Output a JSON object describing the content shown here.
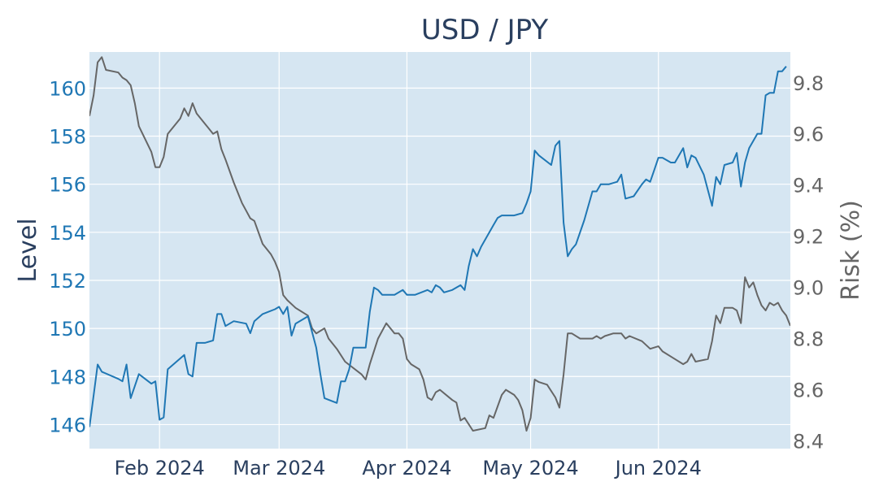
{
  "chart_data": {
    "type": "line",
    "title": "USD / JPY",
    "ylabel": "Level",
    "y2label": "Risk (%)",
    "x_range": [
      "2024-01-15",
      "2024-06-28"
    ],
    "ylim": [
      145.0,
      161.5
    ],
    "y2lim": [
      8.37,
      9.92
    ],
    "x_ticks": [
      {
        "date": "2024-02-01",
        "label": "Feb 2024"
      },
      {
        "date": "2024-03-01",
        "label": "Mar 2024"
      },
      {
        "date": "2024-04-01",
        "label": "Apr 2024"
      },
      {
        "date": "2024-05-01",
        "label": "May 2024"
      },
      {
        "date": "2024-06-01",
        "label": "Jun 2024"
      }
    ],
    "y_ticks": [
      "146",
      "148",
      "150",
      "152",
      "154",
      "156",
      "158",
      "160"
    ],
    "y2_ticks": [
      "8.4",
      "8.6",
      "8.8",
      "9.0",
      "9.2",
      "9.4",
      "9.6",
      "9.8"
    ],
    "grid": true,
    "background_color": "#d6e6f2",
    "series": [
      {
        "axis": "left",
        "color": "#1f77b4",
        "points": [
          [
            "2024-01-15",
            145.9
          ],
          [
            "2024-01-16",
            147.2
          ],
          [
            "2024-01-17",
            148.5
          ],
          [
            "2024-01-18",
            148.2
          ],
          [
            "2024-01-22",
            147.9
          ],
          [
            "2024-01-23",
            147.8
          ],
          [
            "2024-01-24",
            148.5
          ],
          [
            "2024-01-25",
            147.1
          ],
          [
            "2024-01-26",
            147.6
          ],
          [
            "2024-01-27",
            148.1
          ],
          [
            "2024-01-30",
            147.7
          ],
          [
            "2024-01-31",
            147.8
          ],
          [
            "2024-02-01",
            146.2
          ],
          [
            "2024-02-02",
            146.3
          ],
          [
            "2024-02-03",
            148.3
          ],
          [
            "2024-02-05",
            148.6
          ],
          [
            "2024-02-07",
            148.9
          ],
          [
            "2024-02-08",
            148.1
          ],
          [
            "2024-02-09",
            148.0
          ],
          [
            "2024-02-10",
            149.4
          ],
          [
            "2024-02-12",
            149.4
          ],
          [
            "2024-02-14",
            149.5
          ],
          [
            "2024-02-15",
            150.6
          ],
          [
            "2024-02-16",
            150.6
          ],
          [
            "2024-02-17",
            150.1
          ],
          [
            "2024-02-19",
            150.3
          ],
          [
            "2024-02-22",
            150.2
          ],
          [
            "2024-02-23",
            149.8
          ],
          [
            "2024-02-24",
            150.3
          ],
          [
            "2024-02-26",
            150.6
          ],
          [
            "2024-02-29",
            150.8
          ],
          [
            "2024-03-01",
            150.9
          ],
          [
            "2024-03-02",
            150.6
          ],
          [
            "2024-03-03",
            150.9
          ],
          [
            "2024-03-04",
            149.7
          ],
          [
            "2024-03-05",
            150.2
          ],
          [
            "2024-03-08",
            150.5
          ],
          [
            "2024-03-10",
            149.2
          ],
          [
            "2024-03-11",
            148.1
          ],
          [
            "2024-03-12",
            147.1
          ],
          [
            "2024-03-15",
            146.9
          ],
          [
            "2024-03-16",
            147.8
          ],
          [
            "2024-03-17",
            147.8
          ],
          [
            "2024-03-18",
            148.3
          ],
          [
            "2024-03-19",
            149.2
          ],
          [
            "2024-03-22",
            149.2
          ],
          [
            "2024-03-23",
            150.7
          ],
          [
            "2024-03-24",
            151.7
          ],
          [
            "2024-03-25",
            151.6
          ],
          [
            "2024-03-26",
            151.4
          ],
          [
            "2024-03-28",
            151.4
          ],
          [
            "2024-03-29",
            151.4
          ],
          [
            "2024-03-31",
            151.6
          ],
          [
            "2024-04-01",
            151.4
          ],
          [
            "2024-04-03",
            151.4
          ],
          [
            "2024-04-06",
            151.6
          ],
          [
            "2024-04-07",
            151.5
          ],
          [
            "2024-04-08",
            151.8
          ],
          [
            "2024-04-09",
            151.7
          ],
          [
            "2024-04-10",
            151.5
          ],
          [
            "2024-04-12",
            151.6
          ],
          [
            "2024-04-14",
            151.8
          ],
          [
            "2024-04-15",
            151.6
          ],
          [
            "2024-04-16",
            152.6
          ],
          [
            "2024-04-17",
            153.3
          ],
          [
            "2024-04-18",
            153.0
          ],
          [
            "2024-04-19",
            153.4
          ],
          [
            "2024-04-22",
            154.3
          ],
          [
            "2024-04-23",
            154.6
          ],
          [
            "2024-04-24",
            154.7
          ],
          [
            "2024-04-26",
            154.7
          ],
          [
            "2024-04-27",
            154.7
          ],
          [
            "2024-04-29",
            154.8
          ],
          [
            "2024-04-30",
            155.2
          ],
          [
            "2024-05-01",
            155.7
          ],
          [
            "2024-05-02",
            157.4
          ],
          [
            "2024-05-03",
            157.2
          ],
          [
            "2024-05-06",
            156.8
          ],
          [
            "2024-05-07",
            157.6
          ],
          [
            "2024-05-08",
            157.8
          ],
          [
            "2024-05-09",
            154.4
          ],
          [
            "2024-05-10",
            153.0
          ],
          [
            "2024-05-11",
            153.3
          ],
          [
            "2024-05-12",
            153.5
          ],
          [
            "2024-05-14",
            154.5
          ],
          [
            "2024-05-16",
            155.7
          ],
          [
            "2024-05-17",
            155.7
          ],
          [
            "2024-05-18",
            156.0
          ],
          [
            "2024-05-20",
            156.0
          ],
          [
            "2024-05-22",
            156.1
          ],
          [
            "2024-05-23",
            156.4
          ],
          [
            "2024-05-24",
            155.4
          ],
          [
            "2024-05-26",
            155.5
          ],
          [
            "2024-05-28",
            156.0
          ],
          [
            "2024-05-29",
            156.2
          ],
          [
            "2024-05-30",
            156.1
          ],
          [
            "2024-05-31",
            156.6
          ],
          [
            "2024-06-01",
            157.1
          ],
          [
            "2024-06-02",
            157.1
          ],
          [
            "2024-06-04",
            156.9
          ],
          [
            "2024-06-05",
            156.9
          ],
          [
            "2024-06-07",
            157.5
          ],
          [
            "2024-06-08",
            156.7
          ],
          [
            "2024-06-09",
            157.2
          ],
          [
            "2024-06-10",
            157.1
          ],
          [
            "2024-06-12",
            156.4
          ],
          [
            "2024-06-14",
            155.1
          ],
          [
            "2024-06-15",
            156.3
          ],
          [
            "2024-06-16",
            156.0
          ],
          [
            "2024-06-17",
            156.8
          ],
          [
            "2024-06-19",
            156.9
          ],
          [
            "2024-06-20",
            157.3
          ],
          [
            "2024-06-21",
            155.9
          ],
          [
            "2024-06-22",
            156.9
          ],
          [
            "2024-06-23",
            157.5
          ],
          [
            "2024-06-24",
            157.8
          ],
          [
            "2024-06-25",
            158.1
          ],
          [
            "2024-06-26",
            158.1
          ],
          [
            "2024-06-27",
            159.7
          ],
          [
            "2024-06-28",
            159.8
          ],
          [
            "2024-06-29",
            159.8
          ],
          [
            "2024-06-30",
            160.7
          ],
          [
            "2024-07-01",
            160.7
          ],
          [
            "2024-07-02",
            160.9
          ]
        ]
      },
      {
        "axis": "right",
        "color": "#666666",
        "points": [
          [
            "2024-01-15",
            9.67
          ],
          [
            "2024-01-16",
            9.75
          ],
          [
            "2024-01-17",
            9.88
          ],
          [
            "2024-01-18",
            9.9
          ],
          [
            "2024-01-19",
            9.85
          ],
          [
            "2024-01-22",
            9.84
          ],
          [
            "2024-01-23",
            9.82
          ],
          [
            "2024-01-24",
            9.81
          ],
          [
            "2024-01-25",
            9.79
          ],
          [
            "2024-01-26",
            9.72
          ],
          [
            "2024-01-27",
            9.63
          ],
          [
            "2024-01-30",
            9.53
          ],
          [
            "2024-01-31",
            9.47
          ],
          [
            "2024-02-01",
            9.47
          ],
          [
            "2024-02-02",
            9.51
          ],
          [
            "2024-02-03",
            9.6
          ],
          [
            "2024-02-06",
            9.66
          ],
          [
            "2024-02-07",
            9.7
          ],
          [
            "2024-02-08",
            9.67
          ],
          [
            "2024-02-09",
            9.72
          ],
          [
            "2024-02-10",
            9.68
          ],
          [
            "2024-02-12",
            9.64
          ],
          [
            "2024-02-14",
            9.6
          ],
          [
            "2024-02-15",
            9.61
          ],
          [
            "2024-02-16",
            9.54
          ],
          [
            "2024-02-17",
            9.5
          ],
          [
            "2024-02-19",
            9.41
          ],
          [
            "2024-02-21",
            9.33
          ],
          [
            "2024-02-22",
            9.3
          ],
          [
            "2024-02-23",
            9.27
          ],
          [
            "2024-02-24",
            9.26
          ],
          [
            "2024-02-26",
            9.17
          ],
          [
            "2024-02-28",
            9.13
          ],
          [
            "2024-02-29",
            9.1
          ],
          [
            "2024-03-01",
            9.06
          ],
          [
            "2024-03-02",
            8.97
          ],
          [
            "2024-03-03",
            8.95
          ],
          [
            "2024-03-05",
            8.92
          ],
          [
            "2024-03-08",
            8.89
          ],
          [
            "2024-03-09",
            8.84
          ],
          [
            "2024-03-10",
            8.82
          ],
          [
            "2024-03-12",
            8.84
          ],
          [
            "2024-03-13",
            8.8
          ],
          [
            "2024-03-15",
            8.76
          ],
          [
            "2024-03-17",
            8.71
          ],
          [
            "2024-03-21",
            8.66
          ],
          [
            "2024-03-22",
            8.64
          ],
          [
            "2024-03-23",
            8.7
          ],
          [
            "2024-03-25",
            8.8
          ],
          [
            "2024-03-27",
            8.86
          ],
          [
            "2024-03-29",
            8.82
          ],
          [
            "2024-03-30",
            8.82
          ],
          [
            "2024-03-31",
            8.8
          ],
          [
            "2024-04-01",
            8.72
          ],
          [
            "2024-04-02",
            8.7
          ],
          [
            "2024-04-04",
            8.68
          ],
          [
            "2024-04-05",
            8.64
          ],
          [
            "2024-04-06",
            8.57
          ],
          [
            "2024-04-07",
            8.56
          ],
          [
            "2024-04-08",
            8.59
          ],
          [
            "2024-04-09",
            8.6
          ],
          [
            "2024-04-12",
            8.56
          ],
          [
            "2024-04-13",
            8.55
          ],
          [
            "2024-04-14",
            8.48
          ],
          [
            "2024-04-15",
            8.49
          ],
          [
            "2024-04-17",
            8.44
          ],
          [
            "2024-04-20",
            8.45
          ],
          [
            "2024-04-21",
            8.5
          ],
          [
            "2024-04-22",
            8.49
          ],
          [
            "2024-04-24",
            8.58
          ],
          [
            "2024-04-25",
            8.6
          ],
          [
            "2024-04-27",
            8.58
          ],
          [
            "2024-04-28",
            8.56
          ],
          [
            "2024-04-29",
            8.52
          ],
          [
            "2024-04-30",
            8.44
          ],
          [
            "2024-05-01",
            8.49
          ],
          [
            "2024-05-02",
            8.64
          ],
          [
            "2024-05-03",
            8.63
          ],
          [
            "2024-05-05",
            8.62
          ],
          [
            "2024-05-07",
            8.57
          ],
          [
            "2024-05-08",
            8.53
          ],
          [
            "2024-05-09",
            8.66
          ],
          [
            "2024-05-10",
            8.82
          ],
          [
            "2024-05-11",
            8.82
          ],
          [
            "2024-05-13",
            8.8
          ],
          [
            "2024-05-16",
            8.8
          ],
          [
            "2024-05-17",
            8.81
          ],
          [
            "2024-05-18",
            8.8
          ],
          [
            "2024-05-19",
            8.81
          ],
          [
            "2024-05-21",
            8.82
          ],
          [
            "2024-05-23",
            8.82
          ],
          [
            "2024-05-24",
            8.8
          ],
          [
            "2024-05-25",
            8.81
          ],
          [
            "2024-05-28",
            8.79
          ],
          [
            "2024-05-30",
            8.76
          ],
          [
            "2024-06-01",
            8.77
          ],
          [
            "2024-06-02",
            8.75
          ],
          [
            "2024-06-05",
            8.72
          ],
          [
            "2024-06-07",
            8.7
          ],
          [
            "2024-06-08",
            8.71
          ],
          [
            "2024-06-09",
            8.74
          ],
          [
            "2024-06-10",
            8.71
          ],
          [
            "2024-06-13",
            8.72
          ],
          [
            "2024-06-14",
            8.79
          ],
          [
            "2024-06-15",
            8.89
          ],
          [
            "2024-06-16",
            8.86
          ],
          [
            "2024-06-17",
            8.92
          ],
          [
            "2024-06-19",
            8.92
          ],
          [
            "2024-06-20",
            8.91
          ],
          [
            "2024-06-21",
            8.86
          ],
          [
            "2024-06-22",
            9.04
          ],
          [
            "2024-06-23",
            9.0
          ],
          [
            "2024-06-24",
            9.02
          ],
          [
            "2024-06-25",
            8.97
          ],
          [
            "2024-06-26",
            8.93
          ],
          [
            "2024-06-27",
            8.91
          ],
          [
            "2024-06-28",
            8.94
          ],
          [
            "2024-06-29",
            8.93
          ],
          [
            "2024-06-30",
            8.94
          ],
          [
            "2024-07-01",
            8.91
          ],
          [
            "2024-07-02",
            8.89
          ],
          [
            "2024-07-03",
            8.85
          ]
        ]
      }
    ]
  }
}
